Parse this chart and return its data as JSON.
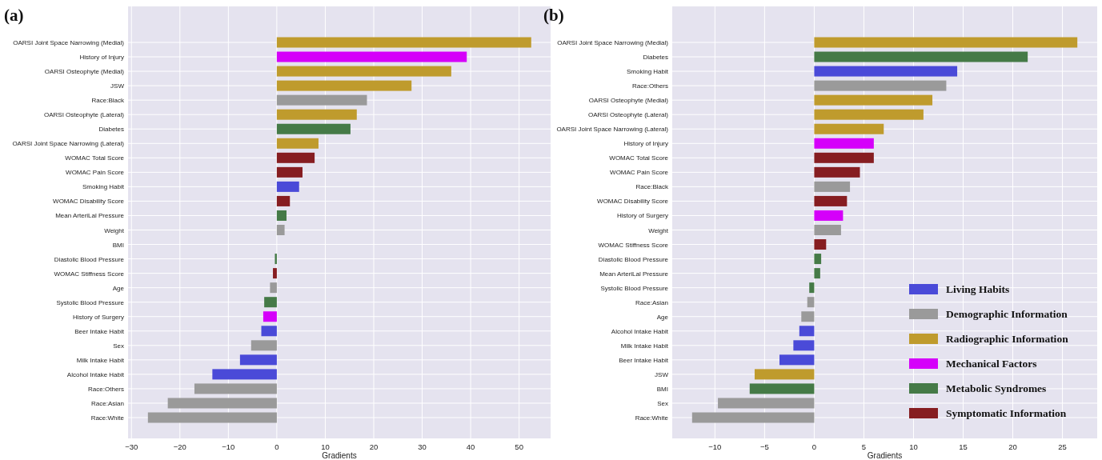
{
  "chart_data": [
    {
      "type": "bar",
      "title": "(a)",
      "xlabel": "Gradients",
      "orientation": "horizontal",
      "grid": true,
      "legend": false,
      "categories": [
        "OARSI Joint Space Narrowing (Medial)",
        "History of Injury",
        "OARSI Osteophyte (Medial)",
        "JSW",
        "Race:Black",
        "OARSI Osteophyte (Lateral)",
        "Diabetes",
        "OARSI Joint Space Narrowing (Lateral)",
        "WOMAC Total Score",
        "WOMAC Pain Score",
        "Smoking Habit",
        "WOMAC Disability Score",
        "Mean ArteriLal Pressure",
        "Weight",
        "BMI",
        "Diastolic Blood Pressure",
        "WOMAC Stiffness Score",
        "Age",
        "Systolic Blood Pressure",
        "History of Surgery",
        "Beer Intake Habit",
        "Sex",
        "Milk Intake Habit",
        "Alcohol Intake Habit",
        "Race:Others",
        "Race:Asian",
        "Race:White"
      ],
      "values": [
        52.5,
        39.2,
        36.0,
        27.8,
        18.6,
        16.5,
        15.2,
        8.6,
        7.8,
        5.3,
        4.6,
        2.7,
        2.0,
        1.6,
        0,
        -0.4,
        -0.8,
        -1.4,
        -2.6,
        -2.8,
        -3.2,
        -5.3,
        -7.6,
        -13.3,
        -17.0,
        -22.5,
        -26.6
      ],
      "colors": [
        "#bf9b2d",
        "#d500fa",
        "#bf9b2d",
        "#bf9b2d",
        "#9a9a9a",
        "#bf9b2d",
        "#457a47",
        "#bf9b2d",
        "#861d21",
        "#861d21",
        "#4a4ad8",
        "#861d21",
        "#457a47",
        "#9a9a9a",
        "#457a47",
        "#457a47",
        "#861d21",
        "#9a9a9a",
        "#457a47",
        "#d500fa",
        "#4a4ad8",
        "#9a9a9a",
        "#4a4ad8",
        "#4a4ad8",
        "#9a9a9a",
        "#9a9a9a",
        "#9a9a9a"
      ],
      "xlim": [
        -30.7,
        56.5
      ],
      "xticks": [
        -30,
        -20,
        -10,
        0,
        10,
        20,
        30,
        40,
        50
      ]
    },
    {
      "type": "bar",
      "title": "(b)",
      "xlabel": "Gradients",
      "orientation": "horizontal",
      "stacked": true,
      "grid": true,
      "legend": "bottom right",
      "categories": [
        "OARSI Joint Space Narrowing (Medial)",
        "Diabetes",
        "Smoking Habit",
        "Race:Others",
        "OARSI Osteophyte (Medial)",
        "OARSI Osteophyte (Lateral)",
        "OARSI Joint Space Narrowing (Lateral)",
        "History of Injury",
        "WOMAC Total Score",
        "WOMAC Pain Score",
        "Race:Black",
        "WOMAC Disability Score",
        "History of Surgery",
        "Weight",
        "WOMAC Stiffness Score",
        "Diastolic Blood Pressure",
        "Mean ArteriLal Pressure",
        "Systolic Blood Pressure",
        "Race:Asian",
        "Age",
        "Alcohol Intake Habit",
        "Milk Intake Habit",
        "Beer Intake Habit",
        "JSW",
        "BMI",
        "Sex",
        "Race:White"
      ],
      "series": [
        {
          "name": "Living Habits",
          "color": "#4a4ad8",
          "values": [
            null,
            null,
            14.4,
            null,
            null,
            null,
            null,
            null,
            null,
            null,
            null,
            null,
            null,
            null,
            null,
            null,
            null,
            null,
            null,
            null,
            -1.5,
            -2.1,
            -3.5,
            null,
            null,
            null,
            null
          ]
        },
        {
          "name": "Demographic Information",
          "color": "#9a9a9a",
          "values": [
            null,
            null,
            null,
            13.3,
            null,
            null,
            null,
            null,
            null,
            null,
            3.6,
            null,
            null,
            2.7,
            null,
            null,
            null,
            null,
            -0.7,
            -1.3,
            null,
            null,
            null,
            null,
            null,
            -9.7,
            -12.3
          ]
        },
        {
          "name": "Radiographic Information",
          "color": "#bf9b2d",
          "values": [
            26.5,
            null,
            null,
            null,
            11.9,
            11.0,
            7.0,
            null,
            null,
            null,
            null,
            null,
            null,
            null,
            null,
            null,
            null,
            null,
            null,
            null,
            null,
            null,
            null,
            -6.0,
            null,
            null,
            null
          ]
        },
        {
          "name": "Mechanical Factors",
          "color": "#d500fa",
          "values": [
            null,
            null,
            null,
            null,
            null,
            null,
            null,
            6.0,
            null,
            null,
            null,
            null,
            2.9,
            null,
            null,
            null,
            null,
            null,
            null,
            null,
            null,
            null,
            null,
            null,
            null,
            null,
            null
          ]
        },
        {
          "name": "Metabolic Syndromes",
          "color": "#457a47",
          "values": [
            null,
            21.5,
            null,
            null,
            null,
            null,
            null,
            null,
            null,
            null,
            null,
            null,
            null,
            null,
            null,
            0.7,
            0.6,
            -0.5,
            null,
            null,
            null,
            null,
            null,
            null,
            -6.5,
            null,
            null
          ]
        },
        {
          "name": "Symptomatic Information",
          "color": "#861d21",
          "values": [
            null,
            null,
            null,
            null,
            null,
            null,
            null,
            null,
            6.0,
            4.6,
            null,
            3.3,
            null,
            null,
            1.2,
            null,
            null,
            null,
            null,
            null,
            null,
            null,
            null,
            null,
            null,
            null,
            null
          ]
        }
      ],
      "xlim": [
        -14.3,
        28.5
      ],
      "xticks": [
        -10,
        -5,
        0,
        5,
        10,
        15,
        20,
        25
      ]
    }
  ]
}
